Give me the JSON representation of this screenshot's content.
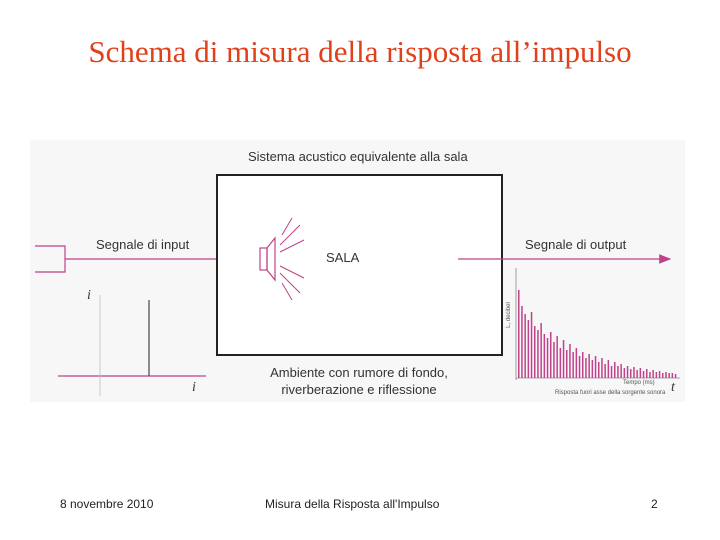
{
  "slide": {
    "title": "Schema di misura della risposta all’impulso"
  },
  "diagram": {
    "system_label": "Sistema acustico equivalente alla sala",
    "input_label": "Segnale di input",
    "output_label": "Segnale di output",
    "room_label": "SALA",
    "ambient_line1": "Ambiente con rumore di fondo,",
    "ambient_line2": "riverberazione e riflessione",
    "input_axis_y": "i",
    "input_axis_x": "i",
    "output_axis_x": "t",
    "output_plot_ylabel": "L, decibel",
    "output_plot_xlabel": "Tempo (ms)",
    "output_plot_caption": "Risposta fuori asse della sorgente sonora",
    "accent_color": "#c0428a"
  },
  "footer": {
    "date": "8 novembre 2010",
    "subject": "Misura della Risposta all'Impulso",
    "page": "2"
  }
}
